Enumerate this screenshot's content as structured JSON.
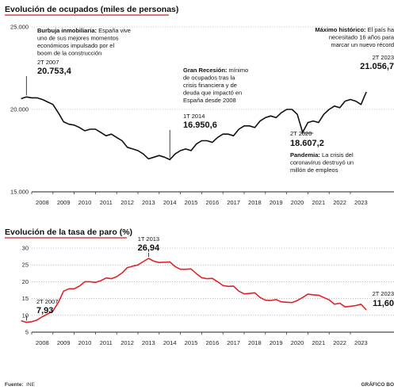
{
  "chart_data": [
    {
      "type": "line",
      "title": "Evolución de ocupados (miles de personas)",
      "ylim": [
        15000,
        25000
      ],
      "yticks": [
        "25.000",
        "20.000",
        "15.000"
      ],
      "ytick_values": [
        25000,
        20000,
        15000
      ],
      "grid": true,
      "line_color": "#111111",
      "x_categories": [
        "2008",
        "2009",
        "2010",
        "2011",
        "2012",
        "2013",
        "2014",
        "2015",
        "2016",
        "2017",
        "2018",
        "2019",
        "2020",
        "2021",
        "2022",
        "2023"
      ],
      "series": [
        {
          "x": [
            2007.0,
            2007.25,
            2007.5,
            2007.75,
            2008.0,
            2008.25,
            2008.5,
            2008.75,
            2009.0,
            2009.25,
            2009.5,
            2009.75,
            2010.0,
            2010.25,
            2010.5,
            2010.75,
            2011.0,
            2011.25,
            2011.5,
            2011.75,
            2012.0,
            2012.25,
            2012.5,
            2012.75,
            2013.0,
            2013.25,
            2013.5,
            2013.75,
            2014.0,
            2014.25,
            2014.5,
            2014.75,
            2015.0,
            2015.25,
            2015.5,
            2015.75,
            2016.0,
            2016.25,
            2016.5,
            2016.75,
            2017.0,
            2017.25,
            2017.5,
            2017.75,
            2018.0,
            2018.25,
            2018.5,
            2018.75,
            2019.0,
            2019.25,
            2019.5,
            2019.75,
            2020.0,
            2020.25,
            2020.5,
            2020.75,
            2021.0,
            2021.25,
            2021.5,
            2021.75,
            2022.0,
            2022.25,
            2022.5,
            2022.75,
            2023.0,
            2023.25
          ],
          "values": [
            20650,
            20753,
            20700,
            20700,
            20600,
            20450,
            20300,
            19800,
            19250,
            19100,
            19050,
            18900,
            18700,
            18800,
            18800,
            18600,
            18400,
            18500,
            18300,
            18100,
            17700,
            17600,
            17500,
            17300,
            17000,
            17100,
            17200,
            17100,
            16950,
            17300,
            17500,
            17600,
            17500,
            17900,
            18100,
            18100,
            18000,
            18300,
            18500,
            18500,
            18400,
            18800,
            19000,
            19000,
            18900,
            19300,
            19500,
            19600,
            19500,
            19800,
            20000,
            20000,
            19700,
            18607,
            19200,
            19300,
            19200,
            19700,
            20000,
            20200,
            20100,
            20500,
            20600,
            20500,
            20300,
            21056
          ]
        }
      ],
      "annotations": {
        "a2007": {
          "lines": [
            "Burbuja inmobiliaria: España vive",
            "uno de sus mejores momentos",
            "económicos impulsado por el",
            "boom de la construcción"
          ],
          "bold_prefix": "Burbuja inmobiliaria:",
          "period": "2T 2007",
          "value": "20.753,4"
        },
        "a2014": {
          "lines": [
            "Gran Recesión: mínimo",
            "de ocupados tras la",
            "crisis financiera y de",
            "deuda que impactó en",
            "España desde 2008"
          ],
          "bold_prefix": "Gran Recesión:",
          "period": "1T 2014",
          "value": "16.950,6"
        },
        "a2020": {
          "lines": [
            "Pandemia: La crisis del",
            "coronavirus destruyó un",
            "millón de empleos"
          ],
          "bold_prefix": "Pandemia:",
          "period": "2T 2020",
          "value": "18.607,2"
        },
        "a2023": {
          "lines": [
            "Máximo histórico: El país ha",
            "necesitado 16 años para",
            "marcar un nuevo récord"
          ],
          "bold_prefix": "Máximo histórico:",
          "period": "2T 2023",
          "value": "21.056,7"
        }
      }
    },
    {
      "type": "line",
      "title": "Evolución de la tasa de paro (%)",
      "ylim": [
        5,
        30
      ],
      "yticks": [
        "30",
        "25",
        "20",
        "15",
        "10",
        "5"
      ],
      "ytick_values": [
        30,
        25,
        20,
        15,
        10,
        5
      ],
      "grid": true,
      "line_color": "#e0222a",
      "x_categories": [
        "2008",
        "2009",
        "2010",
        "2011",
        "2012",
        "2013",
        "2014",
        "2015",
        "2016",
        "2017",
        "2018",
        "2019",
        "2020",
        "2021",
        "2022",
        "2023"
      ],
      "series": [
        {
          "x": [
            2007.0,
            2007.25,
            2007.5,
            2007.75,
            2008.0,
            2008.25,
            2008.5,
            2008.75,
            2009.0,
            2009.25,
            2009.5,
            2009.75,
            2010.0,
            2010.25,
            2010.5,
            2010.75,
            2011.0,
            2011.25,
            2011.5,
            2011.75,
            2012.0,
            2012.25,
            2012.5,
            2012.75,
            2013.0,
            2013.25,
            2013.5,
            2013.75,
            2014.0,
            2014.25,
            2014.5,
            2014.75,
            2015.0,
            2015.25,
            2015.5,
            2015.75,
            2016.0,
            2016.25,
            2016.5,
            2016.75,
            2017.0,
            2017.25,
            2017.5,
            2017.75,
            2018.0,
            2018.25,
            2018.5,
            2018.75,
            2019.0,
            2019.25,
            2019.5,
            2019.75,
            2020.0,
            2020.25,
            2020.5,
            2020.75,
            2021.0,
            2021.25,
            2021.5,
            2021.75,
            2022.0,
            2022.25,
            2022.5,
            2022.75,
            2023.0,
            2023.25
          ],
          "values": [
            8.4,
            7.93,
            8.1,
            8.6,
            9.6,
            10.4,
            11.3,
            13.8,
            17.2,
            17.9,
            17.9,
            18.7,
            20.0,
            20.0,
            19.8,
            20.3,
            21.1,
            20.9,
            21.5,
            22.6,
            24.2,
            24.6,
            25.0,
            26.0,
            26.94,
            26.1,
            25.7,
            25.8,
            25.9,
            24.5,
            23.7,
            23.7,
            23.8,
            22.4,
            21.2,
            20.9,
            21.0,
            20.0,
            18.9,
            18.6,
            18.7,
            17.2,
            16.4,
            16.5,
            16.7,
            15.3,
            14.5,
            14.4,
            14.7,
            14.0,
            13.9,
            13.8,
            14.4,
            15.3,
            16.3,
            16.1,
            16.0,
            15.3,
            14.6,
            13.3,
            13.6,
            12.5,
            12.7,
            12.9,
            13.3,
            11.6
          ]
        }
      ],
      "annotations": {
        "a2007": {
          "period": "2T 2007",
          "value": "7,93"
        },
        "a2013": {
          "period": "1T 2013",
          "value": "26,94"
        },
        "a2023": {
          "period": "2T 2023",
          "value": "11,60"
        }
      }
    }
  ],
  "footer": {
    "source_label": "Fuente:",
    "source": "INE",
    "credit": "GRÁFICO BO"
  }
}
